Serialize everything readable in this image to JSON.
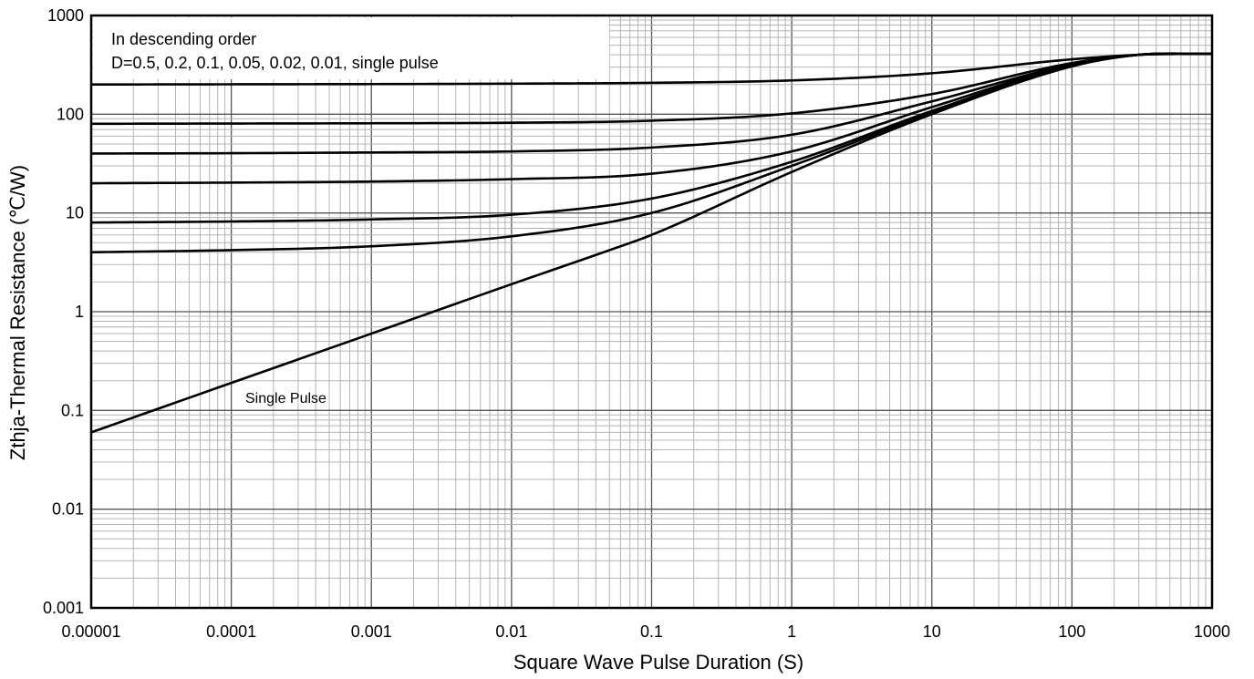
{
  "chart_data": {
    "type": "line",
    "xlabel": "Square Wave Pulse Duration (S)",
    "ylabel": "Zthja-Thermal Resistance (℃/W)",
    "x_scale": "log",
    "y_scale": "log",
    "xlim": [
      1e-05,
      1000
    ],
    "ylim": [
      0.001,
      1000
    ],
    "x_ticks": [
      "0.00001",
      "0.0001",
      "0.001",
      "0.01",
      "0.1",
      "1",
      "10",
      "100",
      "1000"
    ],
    "y_ticks": [
      "0.001",
      "0.01",
      "0.1",
      "1",
      "10",
      "100",
      "1000"
    ],
    "grid": true,
    "legend_note": {
      "line1": "In descending order",
      "line2": "D=0.5, 0.2, 0.1, 0.05, 0.02, 0.01, single pulse"
    },
    "annotation": "Single Pulse",
    "series": [
      {
        "x": [
          1e-05,
          0.0001,
          0.001,
          0.01,
          0.1,
          1,
          10,
          100,
          300,
          1000
        ],
        "y": [
          200,
          201,
          202,
          204,
          208,
          220,
          260,
          360,
          400,
          410
        ]
      },
      {
        "x": [
          1e-05,
          0.0001,
          0.001,
          0.01,
          0.1,
          1,
          10,
          100,
          300,
          1000
        ],
        "y": [
          80,
          80.5,
          81,
          82,
          86,
          102,
          160,
          330,
          400,
          410
        ]
      },
      {
        "x": [
          1e-05,
          0.0001,
          0.001,
          0.01,
          0.1,
          1,
          10,
          100,
          300,
          1000
        ],
        "y": [
          40,
          40.3,
          41,
          42,
          46,
          62,
          135,
          320,
          400,
          410
        ]
      },
      {
        "x": [
          1e-05,
          0.0001,
          0.001,
          0.01,
          0.1,
          1,
          10,
          100,
          300,
          1000
        ],
        "y": [
          20,
          20.3,
          20.8,
          22,
          25,
          42,
          118,
          315,
          400,
          410
        ]
      },
      {
        "x": [
          1e-05,
          0.0001,
          0.001,
          0.01,
          0.1,
          1,
          10,
          100,
          300,
          1000
        ],
        "y": [
          8,
          8.2,
          8.6,
          9.6,
          14,
          33,
          108,
          310,
          400,
          410
        ]
      },
      {
        "x": [
          1e-05,
          0.0001,
          0.001,
          0.01,
          0.1,
          1,
          10,
          100,
          300,
          1000
        ],
        "y": [
          4,
          4.2,
          4.6,
          5.8,
          10,
          30,
          103,
          308,
          400,
          410
        ]
      },
      {
        "x": [
          1e-05,
          0.0001,
          0.001,
          0.01,
          0.05,
          0.1,
          1,
          10,
          100,
          300,
          1000
        ],
        "y": [
          0.06,
          0.19,
          0.6,
          1.9,
          4.2,
          6,
          26,
          100,
          305,
          400,
          410
        ]
      }
    ]
  }
}
